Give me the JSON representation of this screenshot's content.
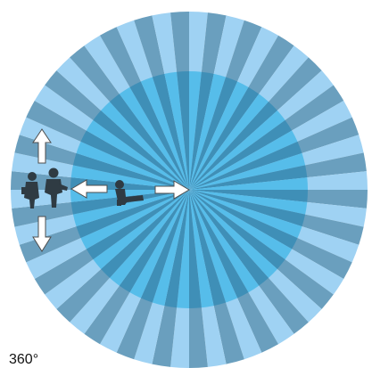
{
  "angle_label": "360°",
  "colors": {
    "outer_ray_light": "#9fd2f3",
    "outer_ray_dark": "#6a9fbe",
    "inner_ray_light": "#56bdea",
    "inner_ray_dark": "#3f8fb7",
    "arrow_fill": "#ffffff",
    "arrow_stroke": "#4d4d4d",
    "figure": "#2f3b43"
  },
  "diagram": {
    "ray_count": 60,
    "icons": [
      "arrow-up-icon",
      "arrow-down-icon",
      "arrow-left-icon",
      "arrow-right-icon",
      "person-icon"
    ]
  }
}
